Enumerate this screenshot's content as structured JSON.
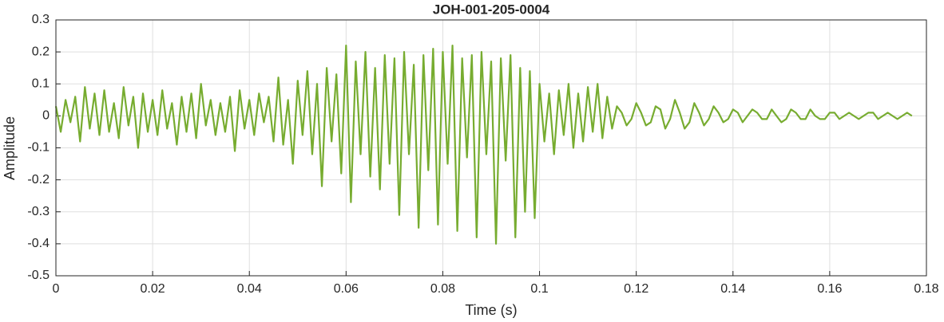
{
  "chart_data": {
    "type": "line",
    "title": "JOH-001-205-0004",
    "x_label": "Time (s)",
    "y_label": "Amplitude",
    "color": "#77ac30",
    "grid": true,
    "xlim": [
      0,
      0.18
    ],
    "ylim": [
      -0.5,
      0.3
    ],
    "xticks": [
      0,
      0.02,
      0.04,
      0.06,
      0.08,
      0.1,
      0.12,
      0.14,
      0.16,
      0.18
    ],
    "yticks": [
      -0.5,
      -0.4,
      -0.3,
      -0.2,
      -0.1,
      0,
      0.1,
      0.2,
      0.3
    ],
    "x": [
      0,
      0.001,
      0.002,
      0.003,
      0.004,
      0.005,
      0.006,
      0.007,
      0.008,
      0.009,
      0.01,
      0.011,
      0.012,
      0.013,
      0.014,
      0.015,
      0.016,
      0.017,
      0.018,
      0.019,
      0.02,
      0.021,
      0.022,
      0.023,
      0.024,
      0.025,
      0.026,
      0.027,
      0.028,
      0.029,
      0.03,
      0.031,
      0.032,
      0.033,
      0.034,
      0.035,
      0.036,
      0.037,
      0.038,
      0.039,
      0.04,
      0.041,
      0.042,
      0.043,
      0.044,
      0.045,
      0.046,
      0.047,
      0.048,
      0.049,
      0.05,
      0.051,
      0.052,
      0.053,
      0.054,
      0.055,
      0.056,
      0.057,
      0.058,
      0.059,
      0.06,
      0.061,
      0.062,
      0.063,
      0.064,
      0.065,
      0.066,
      0.067,
      0.068,
      0.069,
      0.07,
      0.071,
      0.072,
      0.073,
      0.074,
      0.075,
      0.076,
      0.077,
      0.078,
      0.079,
      0.08,
      0.081,
      0.082,
      0.083,
      0.084,
      0.085,
      0.086,
      0.087,
      0.088,
      0.089,
      0.09,
      0.091,
      0.092,
      0.093,
      0.094,
      0.095,
      0.096,
      0.097,
      0.098,
      0.099,
      0.1,
      0.101,
      0.102,
      0.103,
      0.104,
      0.105,
      0.106,
      0.107,
      0.108,
      0.109,
      0.11,
      0.111,
      0.112,
      0.113,
      0.114,
      0.115,
      0.116,
      0.117,
      0.118,
      0.119,
      0.12,
      0.121,
      0.122,
      0.123,
      0.124,
      0.125,
      0.126,
      0.127,
      0.128,
      0.129,
      0.13,
      0.131,
      0.132,
      0.133,
      0.134,
      0.135,
      0.136,
      0.137,
      0.138,
      0.139,
      0.14,
      0.141,
      0.142,
      0.143,
      0.144,
      0.145,
      0.146,
      0.147,
      0.148,
      0.149,
      0.15,
      0.151,
      0.152,
      0.153,
      0.154,
      0.155,
      0.156,
      0.157,
      0.158,
      0.159,
      0.16,
      0.161,
      0.162,
      0.163,
      0.164,
      0.165,
      0.166,
      0.167,
      0.168,
      0.169,
      0.17,
      0.171,
      0.172,
      0.173,
      0.174,
      0.175,
      0.176,
      0.177
    ],
    "values": [
      0.03,
      -0.05,
      0.05,
      -0.02,
      0.06,
      -0.08,
      0.09,
      -0.04,
      0.07,
      -0.06,
      0.08,
      -0.05,
      0.04,
      -0.07,
      0.09,
      -0.03,
      0.06,
      -0.1,
      0.07,
      -0.05,
      0.05,
      -0.06,
      0.08,
      -0.04,
      0.04,
      -0.09,
      0.06,
      -0.05,
      0.07,
      -0.07,
      0.1,
      -0.03,
      0.05,
      -0.06,
      0.04,
      -0.05,
      0.06,
      -0.11,
      0.08,
      -0.04,
      0.05,
      -0.06,
      0.07,
      -0.02,
      0.06,
      -0.08,
      0.12,
      -0.09,
      0.05,
      -0.15,
      0.11,
      -0.06,
      0.14,
      -0.12,
      0.1,
      -0.22,
      0.15,
      -0.08,
      0.13,
      -0.18,
      0.22,
      -0.27,
      0.17,
      -0.12,
      0.2,
      -0.19,
      0.15,
      -0.23,
      0.19,
      -0.15,
      0.18,
      -0.31,
      0.2,
      -0.12,
      0.16,
      -0.35,
      0.19,
      -0.17,
      0.21,
      -0.34,
      0.2,
      -0.15,
      0.22,
      -0.36,
      0.18,
      -0.13,
      0.19,
      -0.38,
      0.2,
      -0.12,
      0.17,
      -0.4,
      0.18,
      -0.14,
      0.19,
      -0.38,
      0.15,
      -0.3,
      0.14,
      -0.32,
      0.1,
      -0.08,
      0.07,
      -0.12,
      0.08,
      -0.06,
      0.1,
      -0.1,
      0.07,
      -0.08,
      0.09,
      -0.05,
      0.1,
      -0.07,
      0.06,
      -0.04,
      0.03,
      0.01,
      -0.03,
      -0.01,
      0.04,
      0.01,
      -0.03,
      -0.02,
      0.03,
      0.02,
      -0.04,
      -0.01,
      0.05,
      0.01,
      -0.04,
      -0.02,
      0.04,
      0.01,
      -0.03,
      -0.01,
      0.03,
      0.01,
      -0.02,
      -0.01,
      0.02,
      0.01,
      -0.02,
      0,
      0.02,
      0.01,
      -0.01,
      -0.01,
      0.02,
      0,
      -0.02,
      -0.01,
      0.02,
      0.01,
      -0.01,
      -0.01,
      0.02,
      0,
      -0.01,
      -0.01,
      0.01,
      0.01,
      -0.01,
      0,
      0.01,
      0,
      -0.01,
      0,
      0.01,
      0.01,
      -0.01,
      0,
      0.01,
      0,
      -0.01,
      0,
      0.01,
      0
    ]
  }
}
